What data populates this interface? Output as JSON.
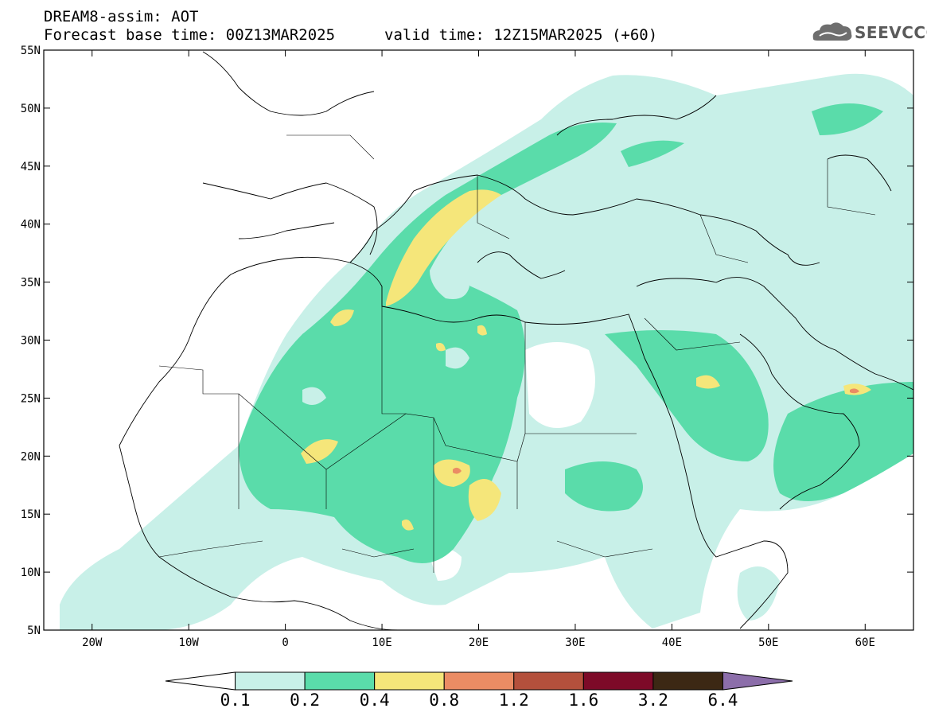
{
  "header": {
    "line1": "DREAM8-assim: AOT",
    "line2": "Forecast base time: 00Z13MAR2025",
    "line3": "valid time: 12Z15MAR2025 (+60)"
  },
  "logo": {
    "text": "SEEVCCC",
    "icon": "cloud-icon"
  },
  "map": {
    "lat_labels": [
      "55N",
      "50N",
      "45N",
      "40N",
      "35N",
      "30N",
      "25N",
      "20N",
      "15N",
      "10N",
      "5N"
    ],
    "lon_labels": [
      "20W",
      "10W",
      "0",
      "10E",
      "20E",
      "30E",
      "40E",
      "50E",
      "60E"
    ],
    "lat_range": [
      5,
      55
    ],
    "lon_range": [
      -25,
      65
    ]
  },
  "colorbar": {
    "labels": [
      "0.1",
      "0.2",
      "0.4",
      "0.8",
      "1.2",
      "1.6",
      "3.2",
      "6.4"
    ],
    "colors": [
      "#ffffff",
      "#c8f0e8",
      "#5adcaa",
      "#f5e67a",
      "#eb8c64",
      "#b4503c",
      "#7d0a28",
      "#3c2814",
      "#8c6eaa"
    ]
  }
}
